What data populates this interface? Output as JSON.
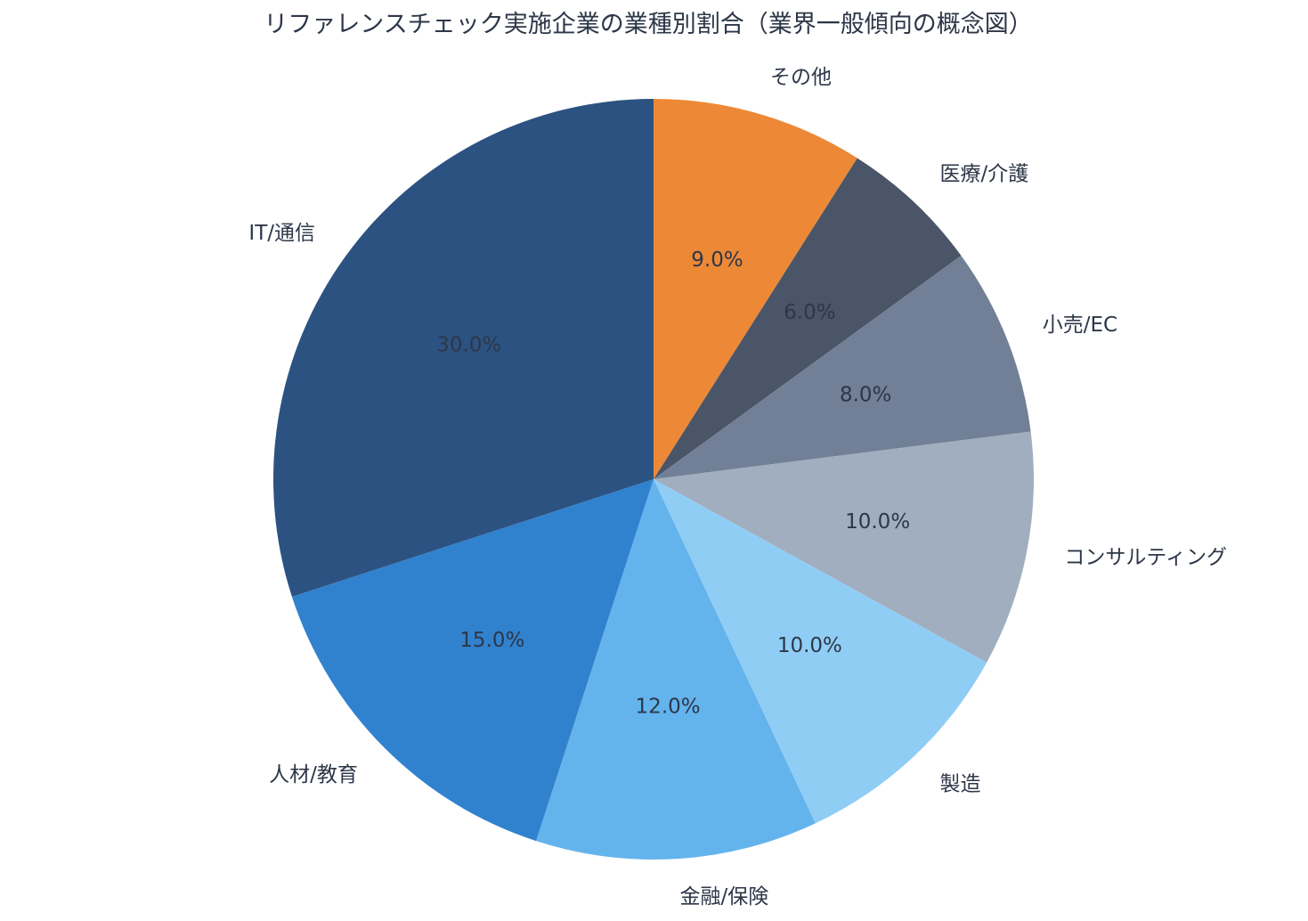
{
  "chart_data": {
    "type": "pie",
    "title": "リファレンスチェック実施企業の業種別割合（業界一般傾向の概念図）",
    "unit": "%",
    "start_angle": "12 o'clock",
    "direction": "clockwise",
    "slices": [
      {
        "label": "その他",
        "value": 9.0,
        "pct_label": "9.0%",
        "color": "#ed8936"
      },
      {
        "label": "医療/介護",
        "value": 6.0,
        "pct_label": "6.0%",
        "color": "#4a5568"
      },
      {
        "label": "小売/EC",
        "value": 8.0,
        "pct_label": "8.0%",
        "color": "#718096"
      },
      {
        "label": "コンサルティング",
        "value": 10.0,
        "pct_label": "10.0%",
        "color": "#a0aec0"
      },
      {
        "label": "製造",
        "value": 10.0,
        "pct_label": "10.0%",
        "color": "#90cdf4"
      },
      {
        "label": "金融/保険",
        "value": 12.0,
        "pct_label": "12.0%",
        "color": "#63b3ed"
      },
      {
        "label": "人材/教育",
        "value": 15.0,
        "pct_label": "15.0%",
        "color": "#3182ce"
      },
      {
        "label": "IT/通信",
        "value": 30.0,
        "pct_label": "30.0%",
        "color": "#2c5282"
      }
    ]
  }
}
